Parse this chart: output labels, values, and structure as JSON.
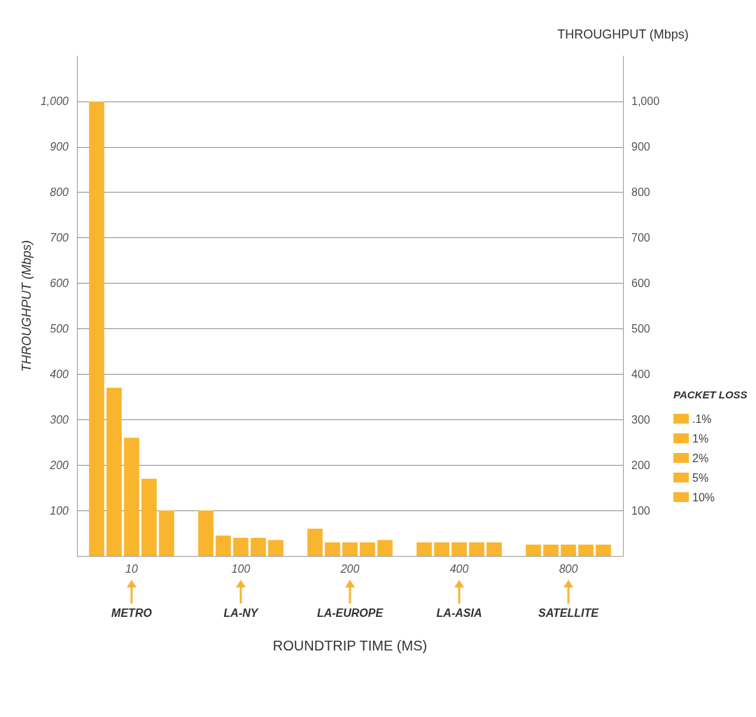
{
  "chart_data": {
    "type": "bar",
    "categories": [
      "10",
      "100",
      "200",
      "400",
      "800"
    ],
    "series": [
      {
        "name": ".1%",
        "color": "#fab52f",
        "values": [
          1000,
          100,
          60,
          30,
          25
        ]
      },
      {
        "name": "1%",
        "color": "#fab52f",
        "values": [
          370,
          45,
          30,
          30,
          25
        ]
      },
      {
        "name": "2%",
        "color": "#fab52f",
        "values": [
          260,
          40,
          30,
          30,
          25
        ]
      },
      {
        "name": "5%",
        "color": "#fab52f",
        "values": [
          170,
          40,
          30,
          30,
          25
        ]
      },
      {
        "name": "10%",
        "color": "#fab52f",
        "values": [
          100,
          35,
          35,
          30,
          25
        ]
      }
    ],
    "xlabel": "ROUNDTRIP TIME (MS)",
    "ylabel": "THROUGHPUT (Mbps)",
    "y2label": "THROUGHPUT (Mbps)",
    "legend_title": "PACKET LOSS",
    "annotations": [
      "METRO",
      "LA-NY",
      "LA-EUROPE",
      "LA-ASIA",
      "SATELLITE"
    ],
    "ylim": [
      0,
      1100
    ],
    "yticks": [
      100,
      200,
      300,
      400,
      500,
      600,
      700,
      800,
      900,
      {
        "value": 1000,
        "label": "1,000"
      }
    ],
    "y2lim": [
      0,
      1100
    ],
    "y2ticks": [
      100,
      200,
      300,
      400,
      500,
      600,
      700,
      800,
      900,
      {
        "value": 1000,
        "label": "1,000"
      }
    ],
    "grid": "y",
    "legend": "right"
  }
}
